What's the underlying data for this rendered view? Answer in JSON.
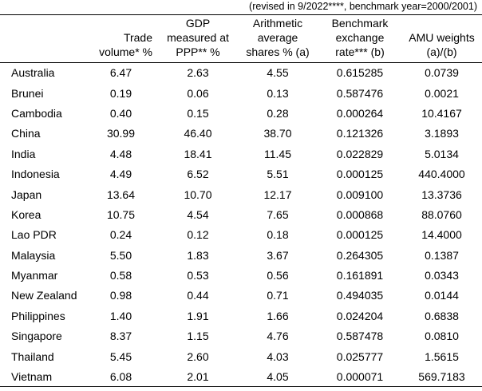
{
  "note": "(revised in 9/2022****, benchmark year=2000/2001)",
  "columns": [
    {
      "key": "country",
      "lines": [
        ""
      ]
    },
    {
      "key": "trade_volume",
      "lines": [
        "Trade",
        "volume*   %"
      ]
    },
    {
      "key": "gdp_ppp",
      "lines": [
        "GDP",
        "measured at",
        "PPP**  %"
      ]
    },
    {
      "key": "arithmetic_average",
      "lines": [
        "Arithmetic",
        "average",
        "shares %  (a)"
      ]
    },
    {
      "key": "benchmark_rate",
      "lines": [
        "Benchmark",
        "exchange",
        "rate***  (b)"
      ]
    },
    {
      "key": "amu_weights",
      "lines": [
        "AMU weights",
        "(a)/(b)"
      ]
    }
  ],
  "rows": [
    {
      "country": "Australia",
      "trade_volume": "6.47",
      "gdp_ppp": "2.63",
      "arithmetic_average": "4.55",
      "benchmark_rate": "0.615285",
      "amu_weights": "0.0739"
    },
    {
      "country": "Brunei",
      "trade_volume": "0.19",
      "gdp_ppp": "0.06",
      "arithmetic_average": "0.13",
      "benchmark_rate": "0.587476",
      "amu_weights": "0.0021"
    },
    {
      "country": "Cambodia",
      "trade_volume": "0.40",
      "gdp_ppp": "0.15",
      "arithmetic_average": "0.28",
      "benchmark_rate": "0.000264",
      "amu_weights": "10.4167"
    },
    {
      "country": "China",
      "trade_volume": "30.99",
      "gdp_ppp": "46.40",
      "arithmetic_average": "38.70",
      "benchmark_rate": "0.121326",
      "amu_weights": "3.1893"
    },
    {
      "country": "India",
      "trade_volume": "4.48",
      "gdp_ppp": "18.41",
      "arithmetic_average": "11.45",
      "benchmark_rate": "0.022829",
      "amu_weights": "5.0134"
    },
    {
      "country": "Indonesia",
      "trade_volume": "4.49",
      "gdp_ppp": "6.52",
      "arithmetic_average": "5.51",
      "benchmark_rate": "0.000125",
      "amu_weights": "440.4000"
    },
    {
      "country": "Japan",
      "trade_volume": "13.64",
      "gdp_ppp": "10.70",
      "arithmetic_average": "12.17",
      "benchmark_rate": "0.009100",
      "amu_weights": "13.3736"
    },
    {
      "country": "Korea",
      "trade_volume": "10.75",
      "gdp_ppp": "4.54",
      "arithmetic_average": "7.65",
      "benchmark_rate": "0.000868",
      "amu_weights": "88.0760"
    },
    {
      "country": "Lao PDR",
      "trade_volume": "0.24",
      "gdp_ppp": "0.12",
      "arithmetic_average": "0.18",
      "benchmark_rate": "0.000125",
      "amu_weights": "14.4000"
    },
    {
      "country": "Malaysia",
      "trade_volume": "5.50",
      "gdp_ppp": "1.83",
      "arithmetic_average": "3.67",
      "benchmark_rate": "0.264305",
      "amu_weights": "0.1387"
    },
    {
      "country": "Myanmar",
      "trade_volume": "0.58",
      "gdp_ppp": "0.53",
      "arithmetic_average": "0.56",
      "benchmark_rate": "0.161891",
      "amu_weights": "0.0343"
    },
    {
      "country": "New Zealand",
      "trade_volume": "0.98",
      "gdp_ppp": "0.44",
      "arithmetic_average": "0.71",
      "benchmark_rate": "0.494035",
      "amu_weights": "0.0144"
    },
    {
      "country": "Philippines",
      "trade_volume": "1.40",
      "gdp_ppp": "1.91",
      "arithmetic_average": "1.66",
      "benchmark_rate": "0.024204",
      "amu_weights": "0.6838"
    },
    {
      "country": "Singapore",
      "trade_volume": "8.37",
      "gdp_ppp": "1.15",
      "arithmetic_average": "4.76",
      "benchmark_rate": "0.587478",
      "amu_weights": "0.0810"
    },
    {
      "country": "Thailand",
      "trade_volume": "5.45",
      "gdp_ppp": "2.60",
      "arithmetic_average": "4.03",
      "benchmark_rate": "0.025777",
      "amu_weights": "1.5615"
    },
    {
      "country": "Vietnam",
      "trade_volume": "6.08",
      "gdp_ppp": "2.01",
      "arithmetic_average": "4.05",
      "benchmark_rate": "0.000071",
      "amu_weights": "569.7183"
    }
  ]
}
